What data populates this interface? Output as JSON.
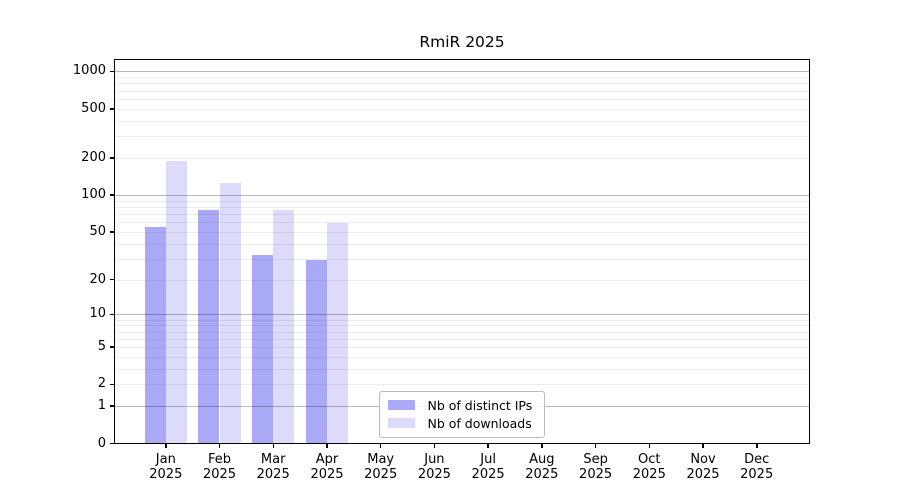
{
  "chart_data": {
    "type": "bar",
    "title": "RmiR 2025",
    "categories": [
      {
        "m": "Jan",
        "y": "2025"
      },
      {
        "m": "Feb",
        "y": "2025"
      },
      {
        "m": "Mar",
        "y": "2025"
      },
      {
        "m": "Apr",
        "y": "2025"
      },
      {
        "m": "May",
        "y": "2025"
      },
      {
        "m": "Jun",
        "y": "2025"
      },
      {
        "m": "Jul",
        "y": "2025"
      },
      {
        "m": "Aug",
        "y": "2025"
      },
      {
        "m": "Sep",
        "y": "2025"
      },
      {
        "m": "Oct",
        "y": "2025"
      },
      {
        "m": "Nov",
        "y": "2025"
      },
      {
        "m": "Dec",
        "y": "2025"
      }
    ],
    "series": [
      {
        "name": "Nb of distinct IPs",
        "color": "#a9a9f5",
        "values": [
          55,
          76,
          32,
          29,
          null,
          null,
          null,
          null,
          null,
          null,
          null,
          null
        ]
      },
      {
        "name": "Nb of downloads",
        "color": "#dcdcfa",
        "values": [
          190,
          125,
          75,
          59,
          null,
          null,
          null,
          null,
          null,
          null,
          null,
          null
        ]
      }
    ],
    "y_ticks": [
      0,
      1,
      2,
      5,
      10,
      20,
      50,
      100,
      200,
      500,
      1000
    ],
    "y_major_gridlines": [
      1,
      10,
      100,
      1000
    ],
    "y_minor_gridlines": [
      2,
      3,
      4,
      5,
      6,
      7,
      8,
      9,
      20,
      30,
      40,
      50,
      60,
      70,
      80,
      90,
      200,
      300,
      400,
      500,
      600,
      700,
      800,
      900
    ],
    "scale": "log10(1+value)",
    "ylim": [
      0,
      1200
    ],
    "grid": "horizontal",
    "legend_position": "lower-center",
    "xlabel": "",
    "ylabel": ""
  }
}
